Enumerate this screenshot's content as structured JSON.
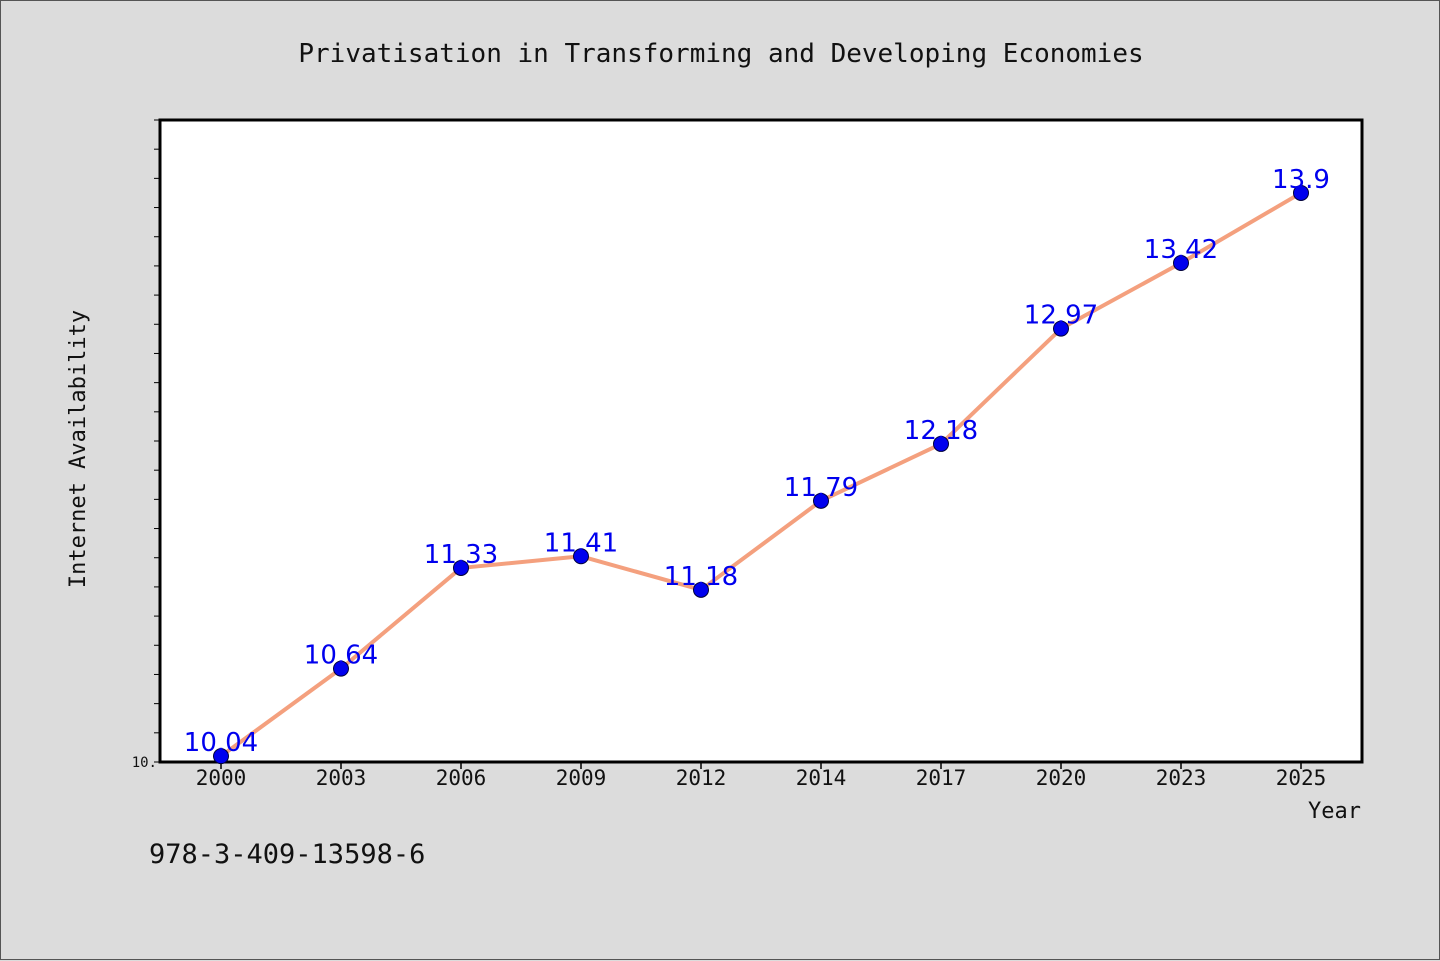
{
  "chart_data": {
    "type": "line",
    "title": "Privatisation in Transforming and Developing Economies",
    "xlabel": "Year",
    "ylabel": "Internet Availability",
    "categories": [
      "2000",
      "2003",
      "2006",
      "2009",
      "2012",
      "2014",
      "2017",
      "2020",
      "2023",
      "2025"
    ],
    "series": [
      {
        "values": [
          10.04,
          10.64,
          11.33,
          11.41,
          11.18,
          11.79,
          12.18,
          12.97,
          13.42,
          13.9
        ],
        "color": "#f4a07e",
        "marker_color": "#0000ee"
      }
    ],
    "data_labels": [
      "10.04",
      "10.64",
      "11.33",
      "11.41",
      "11.18",
      "11.79",
      "12.18",
      "12.97",
      "13.42",
      "13.9"
    ],
    "data_label_color": "#0000ee",
    "ylim": [
      10.0,
      14.4
    ],
    "ytick_labels": [
      {
        "value": 10.0,
        "label": "10."
      }
    ],
    "y_minor_tick_step": 0.2,
    "grid": false,
    "legend": "none"
  },
  "footer": {
    "isbn": "978-3-409-13598-6"
  },
  "colors": {
    "background": "#dcdcdc",
    "plot_background": "#ffffff",
    "axis": "#000000"
  }
}
